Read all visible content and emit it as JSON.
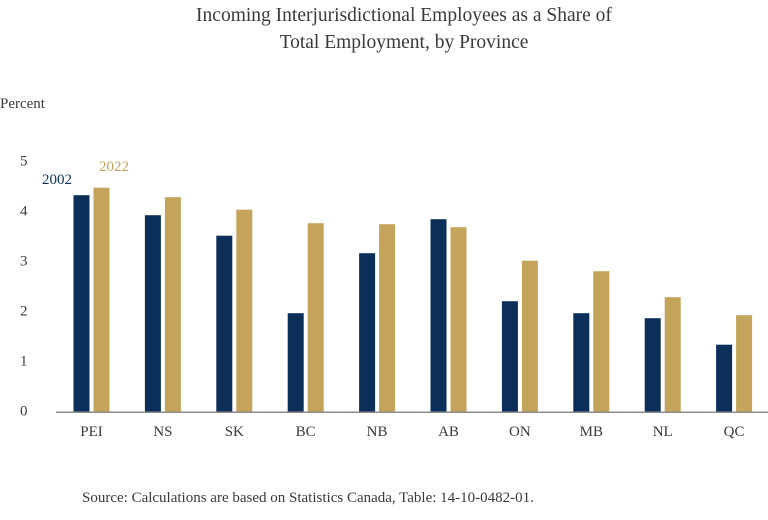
{
  "chart_data": {
    "type": "bar",
    "title": "Incoming Interjurisdictional Employees as a Share of Total Employment, by Province",
    "title_lines": [
      "Incoming Interjurisdictional Employees as a Share of",
      "Total Employment, by Province"
    ],
    "xlabel": "",
    "ylabel": "Percent",
    "ylim": [
      0,
      5
    ],
    "yticks": [
      "0",
      "1",
      "2",
      "3",
      "4",
      "5"
    ],
    "grid": false,
    "legend_position": "inline, above first category",
    "categories": [
      "PEI",
      "NS",
      "SK",
      "BC",
      "NB",
      "AB",
      "ON",
      "MB",
      "NL",
      "QC"
    ],
    "series": [
      {
        "name": "2002",
        "color": "#0c2f5a",
        "values": [
          4.33,
          3.93,
          3.52,
          1.97,
          3.17,
          3.85,
          2.21,
          1.97,
          1.87,
          1.34
        ]
      },
      {
        "name": "2022",
        "color": "#c4a35a",
        "values": [
          4.48,
          4.29,
          4.04,
          3.77,
          3.75,
          3.69,
          3.02,
          2.81,
          2.29,
          1.93
        ]
      }
    ],
    "source": "Source: Calculations are based on Statistics Canada, Table: 14-10-0482-01."
  },
  "colors": {
    "axis": "#8c8c8c",
    "text": "#3a3a3a"
  }
}
